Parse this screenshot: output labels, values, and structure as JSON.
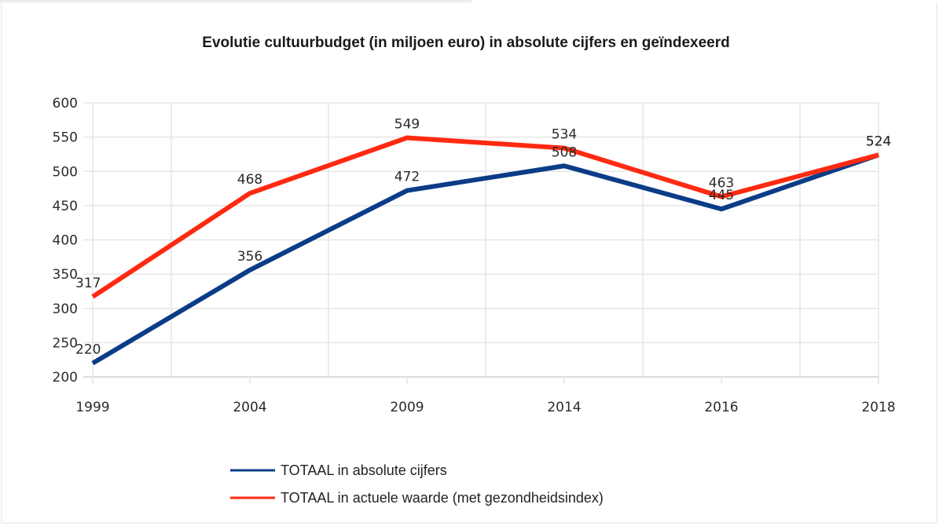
{
  "chart_data": {
    "type": "line",
    "title": "Evolutie cultuurbudget (in miljoen euro) in absolute cijfers en geïndexeerd",
    "xlabel": "",
    "ylabel": "",
    "categories": [
      "1999",
      "2004",
      "2009",
      "2014",
      "2016",
      "2018"
    ],
    "ylim": [
      200,
      600
    ],
    "yticks": [
      200,
      250,
      300,
      350,
      400,
      450,
      500,
      550,
      600
    ],
    "grid": true,
    "legend_position": "bottom",
    "series": [
      {
        "name": "TOTAAL in absolute cijfers",
        "color": "#0b3c87",
        "values": [
          220,
          356,
          472,
          508,
          445,
          524
        ]
      },
      {
        "name": "TOTAAL in actuele waarde (met gezondheidsindex)",
        "color": "#ff2a12",
        "values": [
          317,
          468,
          549,
          534,
          463,
          524
        ]
      }
    ]
  }
}
